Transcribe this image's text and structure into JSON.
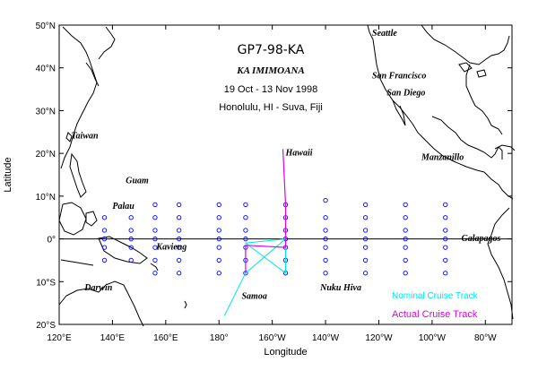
{
  "title": {
    "cruise_id": "GP7-98-KA",
    "ship": "KA IMIMOANA",
    "dates": "19 Oct - 13 Nov 1998",
    "route": "Honolulu, HI - Suva, Fiji"
  },
  "axes": {
    "xlabel": "Longitude",
    "ylabel": "Latitude",
    "lat_ticks": [
      {
        "value": 50,
        "label": "50°N"
      },
      {
        "value": 40,
        "label": "40°N"
      },
      {
        "value": 30,
        "label": "30°N"
      },
      {
        "value": 20,
        "label": "20°N"
      },
      {
        "value": 10,
        "label": "10°N"
      },
      {
        "value": 0,
        "label": "0°"
      },
      {
        "value": -10,
        "label": "10°S"
      },
      {
        "value": -20,
        "label": "20°S"
      }
    ],
    "lon_ticks": [
      {
        "value": 120,
        "label": "120°E"
      },
      {
        "value": 140,
        "label": "140°E"
      },
      {
        "value": 160,
        "label": "160°E"
      },
      {
        "value": 180,
        "label": "180°"
      },
      {
        "value": 200,
        "label": "160°W"
      },
      {
        "value": 220,
        "label": "140°W"
      },
      {
        "value": 240,
        "label": "120°W"
      },
      {
        "value": 260,
        "label": "100°W"
      },
      {
        "value": 280,
        "label": "80°W"
      }
    ],
    "lon_range": [
      120,
      290
    ],
    "lat_range": [
      -20,
      50
    ]
  },
  "places": [
    {
      "name": "Seattle",
      "lon": 237.5,
      "lat": 47.5
    },
    {
      "name": "San Francisco",
      "lon": 237.5,
      "lat": 37.5
    },
    {
      "name": "San Diego",
      "lon": 243,
      "lat": 33.5
    },
    {
      "name": "Manzanillo",
      "lon": 256,
      "lat": 18.5
    },
    {
      "name": "Taiwan",
      "lon": 124.5,
      "lat": 23.5
    },
    {
      "name": "Hawaii",
      "lon": 205,
      "lat": 19.5
    },
    {
      "name": "Guam",
      "lon": 145,
      "lat": 13
    },
    {
      "name": "Palau",
      "lon": 140,
      "lat": 7
    },
    {
      "name": "Kavieng",
      "lon": 156.5,
      "lat": -2.5
    },
    {
      "name": "Galapagos",
      "lon": 271,
      "lat": -0.5
    },
    {
      "name": "Darwin",
      "lon": 129.5,
      "lat": -12
    },
    {
      "name": "Samoa",
      "lon": 188.5,
      "lat": -14
    },
    {
      "name": "Nuku Hiva",
      "lon": 218,
      "lat": -12
    }
  ],
  "legend": {
    "nominal": "Nominal Cruise Track",
    "actual": "Actual Cruise Track"
  },
  "colors": {
    "nominal_track": "#00e6e6",
    "actual_track": "#e000e0",
    "buoy": "#0000ff"
  },
  "tao_buoys": {
    "columns": [
      {
        "lon": 137,
        "lats": [
          5,
          2,
          0,
          -2,
          -5
        ]
      },
      {
        "lon": 147,
        "lats": [
          5,
          2,
          0,
          -2,
          -5
        ]
      },
      {
        "lon": 156,
        "lats": [
          8,
          5,
          2,
          0,
          -2,
          -5,
          -8
        ]
      },
      {
        "lon": 165,
        "lats": [
          8,
          5,
          2,
          0,
          -2,
          -5,
          -8
        ]
      },
      {
        "lon": 180,
        "lats": [
          8,
          5,
          2,
          0,
          -2,
          -5,
          -8
        ]
      },
      {
        "lon": 190,
        "lats": [
          8,
          5,
          2,
          0,
          -2,
          -5,
          -8
        ]
      },
      {
        "lon": 205,
        "lats": [
          8,
          5,
          2,
          0,
          -2,
          -5,
          -8
        ]
      },
      {
        "lon": 220,
        "lats": [
          9,
          5,
          2,
          0,
          -2,
          -5,
          -8
        ]
      },
      {
        "lon": 235,
        "lats": [
          8,
          5,
          2,
          0,
          -2,
          -5,
          -8
        ]
      },
      {
        "lon": 250,
        "lats": [
          8,
          5,
          2,
          0,
          -2,
          -5,
          -8
        ]
      },
      {
        "lon": 265,
        "lats": [
          8,
          5,
          2,
          0,
          -2,
          -5,
          -8
        ]
      }
    ]
  },
  "tracks": {
    "actual": [
      [
        204,
        21
      ],
      [
        205,
        8
      ],
      [
        205,
        -2
      ],
      [
        190,
        -1.5
      ],
      [
        190,
        -8
      ]
    ],
    "nominal": [
      [
        205,
        0
      ],
      [
        190,
        -1
      ],
      [
        205,
        -8
      ],
      [
        205,
        0
      ],
      [
        190,
        -8
      ],
      [
        182,
        -18
      ]
    ]
  }
}
